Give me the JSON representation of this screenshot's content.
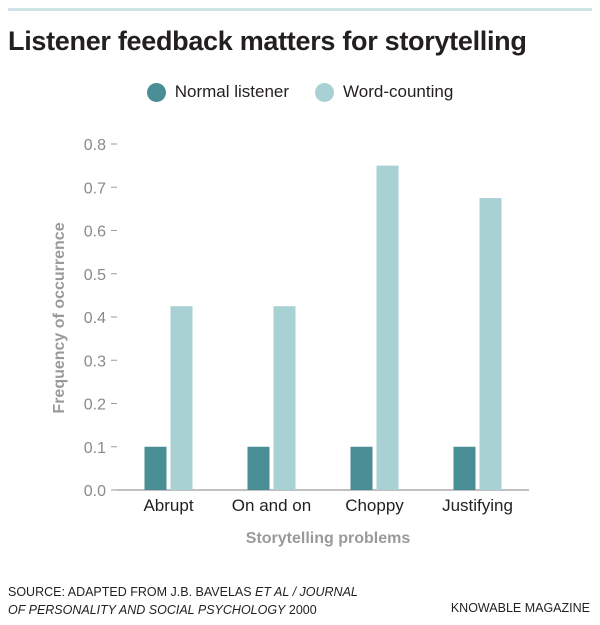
{
  "title": "Listener feedback matters for storytelling",
  "chart_data": {
    "type": "bar",
    "categories": [
      "Abrupt",
      "On and on",
      "Choppy",
      "Justifying"
    ],
    "series": [
      {
        "name": "Normal listener",
        "color": "#4a8e95",
        "values": [
          0.1,
          0.1,
          0.1,
          0.1
        ]
      },
      {
        "name": "Word-counting",
        "color": "#a8d1d4",
        "values": [
          0.425,
          0.425,
          0.75,
          0.675
        ]
      }
    ],
    "xlabel": "Storytelling problems",
    "ylabel": "Frequency of occurrence",
    "ylim": [
      0,
      0.8
    ],
    "yticks": [
      "0.0",
      "0.1",
      "0.2",
      "0.3",
      "0.4",
      "0.5",
      "0.6",
      "0.7",
      "0.8"
    ],
    "grid": false,
    "legend_position": "top-center"
  },
  "footer": {
    "source_prefix": "SOURCE: ADAPTED FROM J.B. BAVELAS ",
    "source_italic_1": "ET AL / JOURNAL",
    "source_italic_2": "OF PERSONALITY AND SOCIAL PSYCHOLOGY",
    "source_year": " 2000",
    "credit": "KNOWABLE MAGAZINE"
  }
}
